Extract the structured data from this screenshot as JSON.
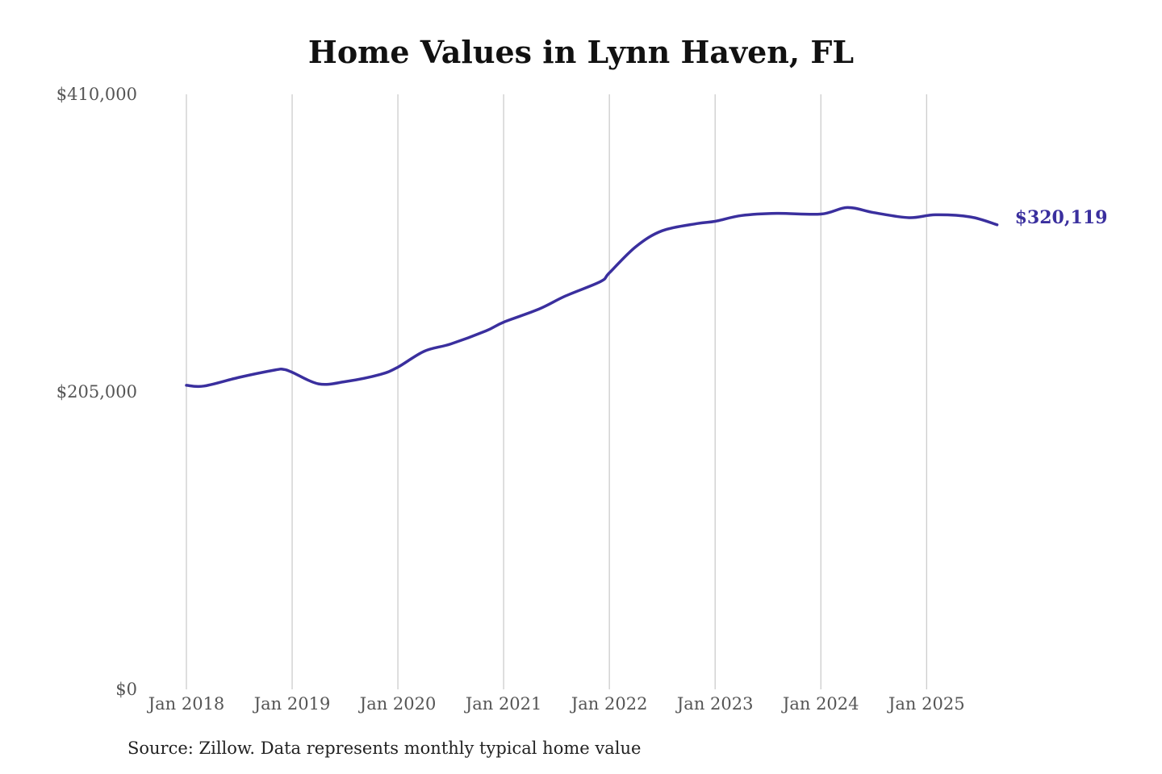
{
  "chart_data": {
    "type": "line",
    "title": "Home Values in Lynn Haven, FL",
    "xlabel": "",
    "ylabel": "",
    "ylim": [
      0,
      410000
    ],
    "y_ticks": [
      {
        "value": 0,
        "label": "$0"
      },
      {
        "value": 205000,
        "label": "$205,000"
      },
      {
        "value": 410000,
        "label": "$410,000"
      }
    ],
    "x_ticks": [
      {
        "value": "2018-01",
        "label": "Jan 2018"
      },
      {
        "value": "2019-01",
        "label": "Jan 2019"
      },
      {
        "value": "2020-01",
        "label": "Jan 2020"
      },
      {
        "value": "2021-01",
        "label": "Jan 2021"
      },
      {
        "value": "2022-01",
        "label": "Jan 2022"
      },
      {
        "value": "2023-01",
        "label": "Jan 2023"
      },
      {
        "value": "2024-01",
        "label": "Jan 2024"
      },
      {
        "value": "2025-01",
        "label": "Jan 2025"
      }
    ],
    "grid": "vertical",
    "line_color": "#3a2f9e",
    "end_label": "$320,119",
    "series": [
      {
        "x": [
          "2018-01",
          "2018-03",
          "2018-07",
          "2018-11",
          "2018-12",
          "2019-01",
          "2019-04",
          "2019-07",
          "2019-11",
          "2020-01",
          "2020-04",
          "2020-07",
          "2020-11",
          "2021-01",
          "2021-05",
          "2021-08",
          "2021-12",
          "2022-01",
          "2022-04",
          "2022-07",
          "2022-11",
          "2023-01",
          "2023-04",
          "2023-08",
          "2024-01",
          "2024-04",
          "2024-07",
          "2024-11",
          "2025-02",
          "2025-06",
          "2025-09"
        ],
        "y": [
          209500,
          209000,
          215000,
          220000,
          220500,
          218500,
          210500,
          212000,
          217000,
          222000,
          233000,
          238000,
          247000,
          253000,
          262000,
          271000,
          281000,
          287000,
          305000,
          316000,
          321000,
          322500,
          326500,
          328000,
          327500,
          332000,
          328500,
          325000,
          327000,
          325500,
          320119
        ]
      }
    ]
  },
  "source": "Source: Zillow. Data represents monthly typical home value"
}
